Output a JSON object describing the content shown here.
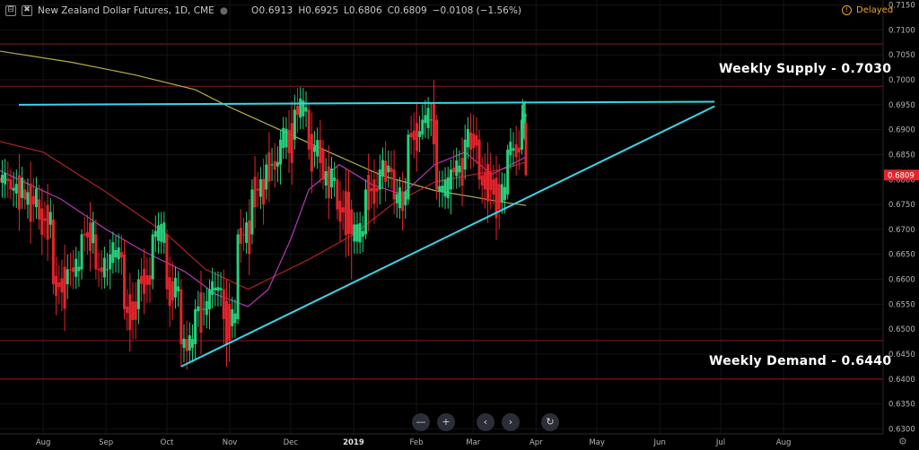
{
  "legend": {
    "title": "New Zealand Dollar Futures, 1D, CME",
    "open": "O0.6913",
    "high": "H0.6925",
    "low": "L0.6806",
    "close": "C0.6809",
    "change": "−0.0108 (−1.56%)"
  },
  "status": {
    "delayed_label": "Delayed",
    "clock_icon": "clock-icon"
  },
  "annotations": {
    "supply_label": "Weekly Supply - 0.7030",
    "demand_label": "Weekly Demand - 0.6440"
  },
  "colors": {
    "up": "#26d07c",
    "down": "#e3242b",
    "trendline": "#3ad6e6",
    "zone": "#8b1a1a",
    "ma_slow": "#b5b04a",
    "ma_mid": "#b0202a",
    "ma_fast": "#b53ab5",
    "price_tag": "#e3242b",
    "delayed": "#f5a623"
  },
  "nav": {
    "zoom_out_icon": "minus-icon",
    "zoom_in_icon": "plus-icon",
    "scroll_left_icon": "chevron-left-icon",
    "scroll_right_icon": "chevron-right-icon",
    "reset_icon": "reset-icon",
    "settings_icon": "gear-icon"
  },
  "chart_data": {
    "type": "candlestick",
    "x_ticks": [
      "Aug",
      "Sep",
      "Oct",
      "Nov",
      "Dec",
      "2019",
      "Feb",
      "Mar",
      "Apr",
      "May",
      "Jun",
      "Jul",
      "Aug"
    ],
    "y_ticks": [
      "0.7150",
      "0.7100",
      "0.7050",
      "0.7000",
      "0.6950",
      "0.6900",
      "0.6850",
      "0.6800",
      "0.6750",
      "0.6700",
      "0.6650",
      "0.6600",
      "0.6550",
      "0.6500",
      "0.6450",
      "0.6400",
      "0.6350",
      "0.6300"
    ],
    "ylim": [
      0.629,
      0.716
    ],
    "last_price": 0.6809,
    "last_price_label": "0.6809",
    "zones": [
      {
        "name": "weekly-supply",
        "top": 0.7072,
        "bottom": 0.6987
      },
      {
        "name": "weekly-demand",
        "top": 0.6477,
        "bottom": 0.64
      }
    ],
    "trendlines": [
      {
        "name": "resistance",
        "from": [
          "2018-07-20",
          0.695
        ],
        "to": [
          "2019-06-28",
          0.6956
        ]
      },
      {
        "name": "support",
        "from": [
          "2018-10-08",
          0.6425
        ],
        "to": [
          "2019-06-28",
          0.6947
        ]
      }
    ],
    "moving_averages": [
      {
        "name": "ma-slow",
        "points": [
          [
            "2018-07-02",
            0.7063
          ],
          [
            "2018-08-15",
            0.7035
          ],
          [
            "2018-09-15",
            0.701
          ],
          [
            "2018-10-15",
            0.698
          ],
          [
            "2018-11-01",
            0.6945
          ],
          [
            "2018-12-01",
            0.689
          ],
          [
            "2018-12-20",
            0.6855
          ],
          [
            "2019-01-15",
            0.6808
          ],
          [
            "2019-02-10",
            0.6778
          ],
          [
            "2019-03-01",
            0.6765
          ],
          [
            "2019-03-15",
            0.6755
          ],
          [
            "2019-03-27",
            0.6748
          ]
        ]
      },
      {
        "name": "ma-mid",
        "points": [
          [
            "2018-07-02",
            0.6885
          ],
          [
            "2018-08-01",
            0.6855
          ],
          [
            "2018-09-01",
            0.6775
          ],
          [
            "2018-10-01",
            0.669
          ],
          [
            "2018-10-20",
            0.662
          ],
          [
            "2018-11-10",
            0.658
          ],
          [
            "2018-11-25",
            0.661
          ],
          [
            "2018-12-10",
            0.664
          ],
          [
            "2019-01-01",
            0.669
          ],
          [
            "2019-01-20",
            0.675
          ],
          [
            "2019-02-10",
            0.6795
          ],
          [
            "2019-03-01",
            0.681
          ],
          [
            "2019-03-15",
            0.682
          ],
          [
            "2019-03-27",
            0.6835
          ]
        ]
      },
      {
        "name": "ma-fast",
        "points": [
          [
            "2018-07-02",
            0.6835
          ],
          [
            "2018-07-20",
            0.68
          ],
          [
            "2018-08-10",
            0.676
          ],
          [
            "2018-09-01",
            0.67
          ],
          [
            "2018-09-20",
            0.6655
          ],
          [
            "2018-10-10",
            0.6615
          ],
          [
            "2018-10-25",
            0.657
          ],
          [
            "2018-11-10",
            0.6545
          ],
          [
            "2018-11-20",
            0.658
          ],
          [
            "2018-12-01",
            0.668
          ],
          [
            "2018-12-10",
            0.678
          ],
          [
            "2018-12-25",
            0.683
          ],
          [
            "2019-01-10",
            0.679
          ],
          [
            "2019-01-25",
            0.677
          ],
          [
            "2019-02-10",
            0.683
          ],
          [
            "2019-02-25",
            0.6855
          ],
          [
            "2019-03-10",
            0.681
          ],
          [
            "2019-03-27",
            0.6845
          ]
        ]
      }
    ],
    "candles": [
      [
        "2018-07-02",
        0.68,
        0.683,
        0.678,
        0.682
      ],
      [
        "2018-07-09",
        0.682,
        0.685,
        0.679,
        0.68
      ],
      [
        "2018-07-16",
        0.68,
        0.682,
        0.676,
        0.678
      ],
      [
        "2018-07-23",
        0.678,
        0.68,
        0.674,
        0.676
      ],
      [
        "2018-07-30",
        0.676,
        0.679,
        0.67,
        0.672
      ],
      [
        "2018-08-06",
        0.672,
        0.675,
        0.657,
        0.659
      ],
      [
        "2018-08-13",
        0.659,
        0.665,
        0.656,
        0.662
      ],
      [
        "2018-08-20",
        0.662,
        0.67,
        0.66,
        0.669
      ],
      [
        "2018-08-27",
        0.669,
        0.672,
        0.66,
        0.662
      ],
      [
        "2018-09-03",
        0.662,
        0.668,
        0.658,
        0.665
      ],
      [
        "2018-09-10",
        0.665,
        0.668,
        0.652,
        0.654
      ],
      [
        "2018-09-17",
        0.654,
        0.662,
        0.651,
        0.66
      ],
      [
        "2018-09-24",
        0.66,
        0.67,
        0.658,
        0.669
      ],
      [
        "2018-10-01",
        0.669,
        0.67,
        0.656,
        0.658
      ],
      [
        "2018-10-08",
        0.658,
        0.66,
        0.6425,
        0.647
      ],
      [
        "2018-10-15",
        0.647,
        0.656,
        0.644,
        0.654
      ],
      [
        "2018-10-22",
        0.654,
        0.66,
        0.65,
        0.658
      ],
      [
        "2018-10-29",
        0.658,
        0.662,
        0.647,
        0.652
      ],
      [
        "2018-11-05",
        0.652,
        0.67,
        0.651,
        0.669
      ],
      [
        "2018-11-12",
        0.669,
        0.68,
        0.667,
        0.678
      ],
      [
        "2018-11-19",
        0.678,
        0.685,
        0.676,
        0.683
      ],
      [
        "2018-11-26",
        0.683,
        0.69,
        0.679,
        0.688
      ],
      [
        "2018-12-03",
        0.688,
        0.697,
        0.686,
        0.694
      ],
      [
        "2018-12-10",
        0.694,
        0.695,
        0.684,
        0.686
      ],
      [
        "2018-12-17",
        0.686,
        0.688,
        0.678,
        0.68
      ],
      [
        "2018-12-24",
        0.68,
        0.683,
        0.672,
        0.674
      ],
      [
        "2018-12-31",
        0.674,
        0.676,
        0.66,
        0.669
      ],
      [
        "2019-01-07",
        0.669,
        0.68,
        0.668,
        0.678
      ],
      [
        "2019-01-14",
        0.678,
        0.685,
        0.675,
        0.682
      ],
      [
        "2019-01-21",
        0.682,
        0.686,
        0.673,
        0.676
      ],
      [
        "2019-01-28",
        0.676,
        0.69,
        0.675,
        0.689
      ],
      [
        "2019-02-04",
        0.689,
        0.695,
        0.688,
        0.692
      ],
      [
        "2019-02-11",
        0.692,
        0.693,
        0.676,
        0.678
      ],
      [
        "2019-02-18",
        0.678,
        0.684,
        0.673,
        0.682
      ],
      [
        "2019-02-25",
        0.682,
        0.691,
        0.68,
        0.688
      ],
      [
        "2019-03-04",
        0.688,
        0.69,
        0.678,
        0.68
      ],
      [
        "2019-03-11",
        0.68,
        0.683,
        0.675,
        0.677
      ],
      [
        "2019-03-18",
        0.677,
        0.687,
        0.676,
        0.686
      ],
      [
        "2019-03-25",
        0.686,
        0.695,
        0.685,
        0.692
      ],
      [
        "2019-03-27",
        0.6913,
        0.6925,
        0.6806,
        0.6809
      ]
    ]
  }
}
